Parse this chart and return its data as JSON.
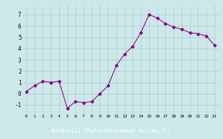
{
  "x": [
    0,
    1,
    2,
    3,
    4,
    5,
    6,
    7,
    8,
    9,
    10,
    11,
    12,
    13,
    14,
    15,
    16,
    17,
    18,
    19,
    20,
    21,
    22,
    23
  ],
  "y": [
    0.2,
    0.7,
    1.1,
    1.0,
    1.1,
    -1.3,
    -0.7,
    -0.8,
    -0.7,
    0.0,
    0.7,
    2.5,
    3.5,
    4.2,
    5.4,
    7.0,
    6.7,
    6.2,
    5.9,
    5.7,
    5.4,
    5.3,
    5.1,
    4.3
  ],
  "line_color": "#8b008b",
  "marker": "D",
  "marker_size": 2,
  "bg_color": "#cce8e8",
  "grid_color": "#aacccc",
  "xlabel": "Windchill (Refroidissement éolien,°C)",
  "xlabel_bg": "#6655aa",
  "xlabel_fg": "#ffffff",
  "ylabel_ticks": [
    -1,
    0,
    1,
    2,
    3,
    4,
    5,
    6,
    7
  ],
  "xlim": [
    -0.5,
    23.5
  ],
  "ylim": [
    -1.8,
    7.8
  ]
}
